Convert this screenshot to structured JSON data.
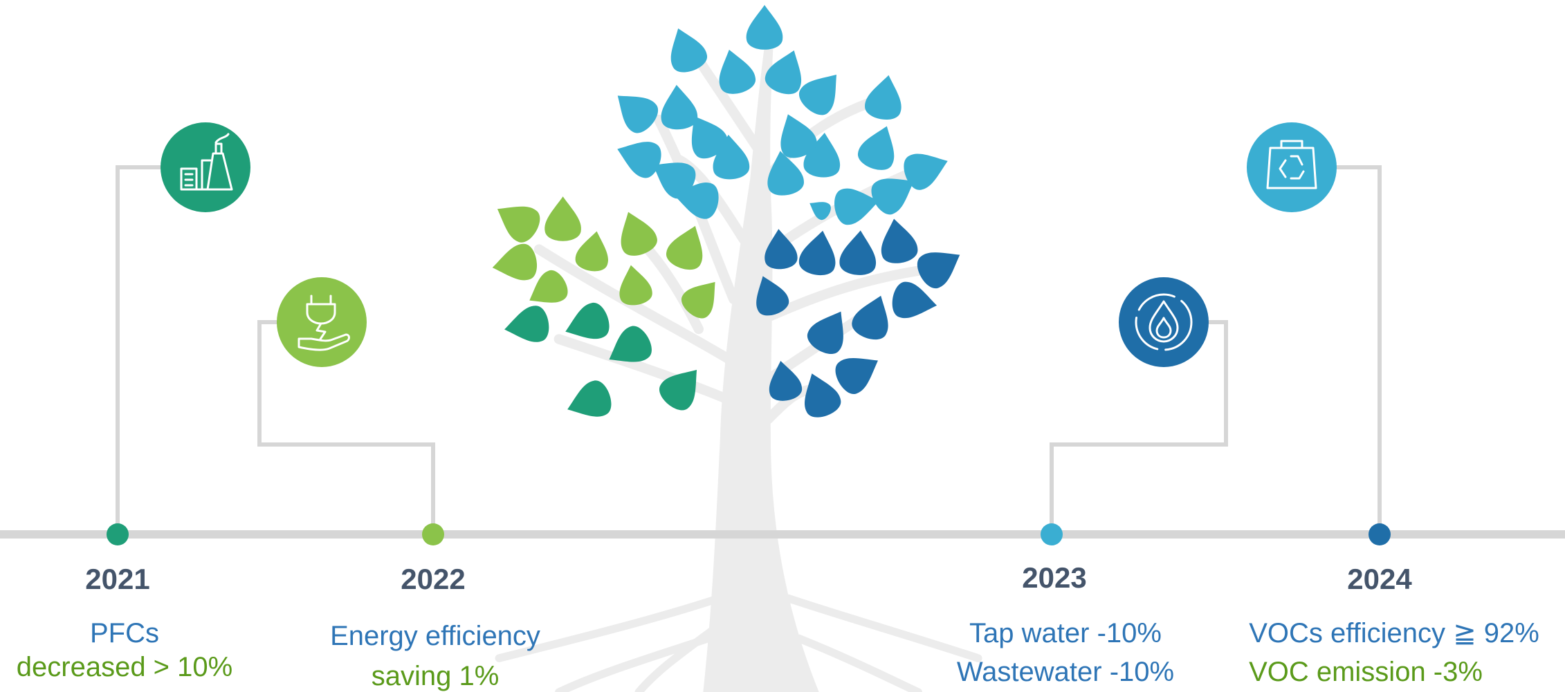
{
  "milestones": [
    {
      "year": "2021",
      "line1": "PFCs",
      "line2": "decreased > 10%"
    },
    {
      "year": "2022",
      "line1": "Energy efficiency",
      "line2": "saving 1%"
    },
    {
      "year": "2023",
      "line1": "Tap water -10%",
      "line2": "Wastewater -10%"
    },
    {
      "year": "2024",
      "line1": "VOCs efficiency ≧ 92%",
      "line2": "VOC emission -3%"
    }
  ]
}
